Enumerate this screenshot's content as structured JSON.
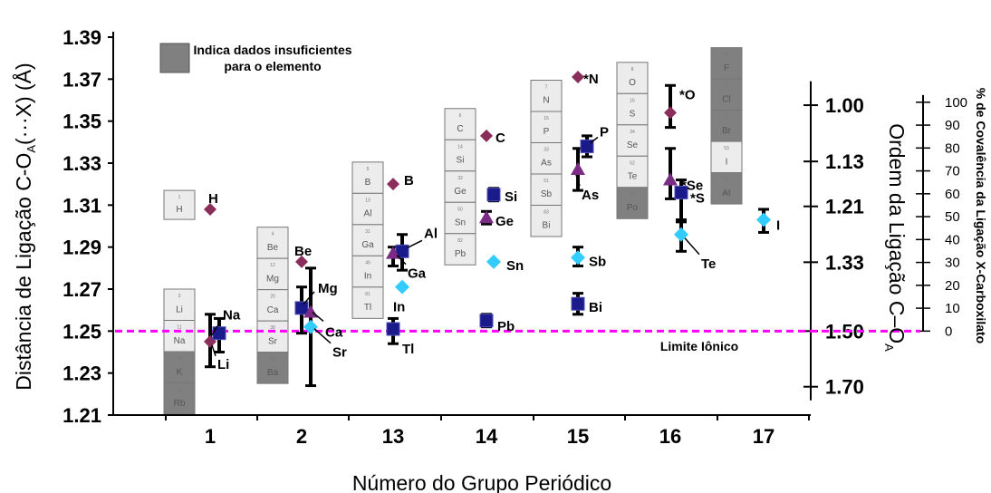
{
  "chart_data": {
    "type": "scatter",
    "xlabel": "Número do Grupo Periódico",
    "ylabel": "Distância de Ligação C-O",
    "ylabel_sub": "A",
    "ylabel_tail": "(···X) (Å)",
    "right_label": "Ordem da Ligação C–O",
    "right_label_sub": "A",
    "far_right_label": "% de Covalência da Ligação X-Carboxilato",
    "categories": [
      "1",
      "2",
      "13",
      "14",
      "15",
      "16",
      "17"
    ],
    "yticks": [
      "1.21",
      "1.23",
      "1.25",
      "1.27",
      "1.29",
      "1.31",
      "1.33",
      "1.35",
      "1.37",
      "1.39"
    ],
    "ylim": [
      1.21,
      1.39
    ],
    "bond_order_ticks": [
      {
        "label": "1.00",
        "y": 1.3576
      },
      {
        "label": "1.13",
        "y": 1.3308
      },
      {
        "label": "1.21",
        "y": 1.3094
      },
      {
        "label": "1.33",
        "y": 1.2828
      },
      {
        "label": "1.50",
        "y": 1.25
      },
      {
        "label": "1.70",
        "y": 1.2235
      }
    ],
    "covalence_ticks": [
      "0",
      "10",
      "20",
      "30",
      "40",
      "50",
      "60",
      "70",
      "80",
      "90",
      "100"
    ],
    "covalence_range": [
      1.25,
      1.359
    ],
    "ionic_limit": {
      "y": 1.25,
      "label": "Limite Iônico",
      "color": "#ff00ff"
    },
    "legend": {
      "text_line1": "Indica dados insuficientes",
      "text_line2": "para o elemento",
      "swatch_color": "#808080"
    },
    "colors": {
      "diamond": "#8b2d5b",
      "square": "#1a1a8a",
      "triangle": "#7b2b83",
      "cyan": "#33ccff",
      "insufficient": "#808080",
      "box": "#ececec"
    },
    "periodic_boxes": [
      {
        "group": 1,
        "elements": [
          {
            "s": "H",
            "n": "1",
            "dark": false
          }
        ],
        "top": 1.317
      },
      {
        "group": 1,
        "elements": [
          {
            "s": "Li",
            "n": "3",
            "dark": false
          },
          {
            "s": "Na",
            "n": "11",
            "dark": false
          },
          {
            "s": "K",
            "n": "19",
            "dark": true
          },
          {
            "s": "Rb",
            "n": "37",
            "dark": true
          }
        ],
        "top": 1.27
      },
      {
        "group": 2,
        "elements": [
          {
            "s": "Be",
            "n": "4",
            "dark": false
          },
          {
            "s": "Mg",
            "n": "12",
            "dark": false
          },
          {
            "s": "Ca",
            "n": "20",
            "dark": false
          },
          {
            "s": "Sr",
            "n": "38",
            "dark": false
          },
          {
            "s": "Ba",
            "n": "56",
            "dark": true
          }
        ],
        "top": 1.2995
      },
      {
        "group": 13,
        "elements": [
          {
            "s": "B",
            "n": "5",
            "dark": false
          },
          {
            "s": "Al",
            "n": "13",
            "dark": false
          },
          {
            "s": "Ga",
            "n": "31",
            "dark": false
          },
          {
            "s": "In",
            "n": "49",
            "dark": false
          },
          {
            "s": "Tl",
            "n": "81",
            "dark": false
          }
        ],
        "top": 1.3305
      },
      {
        "group": 14,
        "elements": [
          {
            "s": "C",
            "n": "6",
            "dark": false
          },
          {
            "s": "Si",
            "n": "14",
            "dark": false
          },
          {
            "s": "Ge",
            "n": "32",
            "dark": false
          },
          {
            "s": "Sn",
            "n": "50",
            "dark": false
          },
          {
            "s": "Pb",
            "n": "82",
            "dark": false
          }
        ],
        "top": 1.356
      },
      {
        "group": 15,
        "elements": [
          {
            "s": "N",
            "n": "7",
            "dark": false
          },
          {
            "s": "P",
            "n": "15",
            "dark": false
          },
          {
            "s": "As",
            "n": "33",
            "dark": false
          },
          {
            "s": "Sb",
            "n": "51",
            "dark": false
          },
          {
            "s": "Bi",
            "n": "83",
            "dark": false
          }
        ],
        "top": 1.3695
      },
      {
        "group": 16,
        "elements": [
          {
            "s": "O",
            "n": "8",
            "dark": false
          },
          {
            "s": "S",
            "n": "16",
            "dark": false
          },
          {
            "s": "Se",
            "n": "34",
            "dark": false
          },
          {
            "s": "Te",
            "n": "52",
            "dark": false
          },
          {
            "s": "Po",
            "n": "84",
            "dark": true
          }
        ],
        "top": 1.378
      },
      {
        "group": 17,
        "elements": [
          {
            "s": "F",
            "n": "9",
            "dark": true
          },
          {
            "s": "Cl",
            "n": "17",
            "dark": true
          },
          {
            "s": "Br",
            "n": "35",
            "dark": true
          },
          {
            "s": "I",
            "n": "53",
            "dark": false
          },
          {
            "s": "At",
            "n": "85",
            "dark": true
          }
        ],
        "top": 1.385
      }
    ],
    "points": [
      {
        "label": "H",
        "group": 1,
        "offset": 0.0,
        "y": 1.308,
        "marker": "diamond"
      },
      {
        "label": "Li",
        "group": 1,
        "offset": 0.0,
        "y": 1.245,
        "marker": "diamond",
        "err": [
          1.233,
          1.258
        ]
      },
      {
        "label": "Na",
        "group": 1,
        "offset": 0.1,
        "y": 1.249,
        "marker": "square",
        "err": [
          1.24,
          1.256
        ]
      },
      {
        "label": "Be",
        "group": 2,
        "offset": 0.0,
        "y": 1.283,
        "marker": "diamond"
      },
      {
        "label": "Mg",
        "group": 2,
        "offset": 0.0,
        "y": 1.261,
        "marker": "square",
        "err": [
          1.249,
          1.271
        ]
      },
      {
        "label": "Ca",
        "group": 2,
        "offset": 0.1,
        "y": 1.259,
        "marker": "triangle",
        "err": [
          1.224,
          1.28
        ]
      },
      {
        "label": "Sr",
        "group": 2,
        "offset": 0.1,
        "y": 1.252,
        "marker": "cyan"
      },
      {
        "label": "B",
        "group": 13,
        "offset": 0.0,
        "y": 1.32,
        "marker": "diamond"
      },
      {
        "label": "Al",
        "group": 13,
        "offset": 0.1,
        "y": 1.288,
        "marker": "square",
        "err": [
          1.279,
          1.296
        ]
      },
      {
        "label": "Ga",
        "group": 13,
        "offset": 0.0,
        "y": 1.287,
        "marker": "triangle",
        "err": [
          1.281,
          1.29
        ]
      },
      {
        "label": "In",
        "group": 13,
        "offset": 0.1,
        "y": 1.271,
        "marker": "cyan"
      },
      {
        "label": "Tl",
        "group": 13,
        "offset": 0.0,
        "y": 1.251,
        "marker": "square",
        "err": [
          1.244,
          1.256
        ]
      },
      {
        "label": "C",
        "group": 14,
        "offset": 0.0,
        "y": 1.343,
        "marker": "diamond"
      },
      {
        "label": "Si",
        "group": 14,
        "offset": 0.08,
        "y": 1.315,
        "marker": "square",
        "err": [
          1.312,
          1.318
        ]
      },
      {
        "label": "Ge",
        "group": 14,
        "offset": 0.0,
        "y": 1.304,
        "marker": "triangle",
        "err": [
          1.301,
          1.307
        ]
      },
      {
        "label": "Sn",
        "group": 14,
        "offset": 0.08,
        "y": 1.283,
        "marker": "cyan"
      },
      {
        "label": "Pb",
        "group": 14,
        "offset": 0.0,
        "y": 1.255,
        "marker": "square",
        "err": [
          1.252,
          1.258
        ]
      },
      {
        "label": "*N",
        "group": 15,
        "offset": 0.0,
        "y": 1.371,
        "marker": "diamond"
      },
      {
        "label": "P",
        "group": 15,
        "offset": 0.1,
        "y": 1.338,
        "marker": "square",
        "err": [
          1.333,
          1.343
        ]
      },
      {
        "label": "As",
        "group": 15,
        "offset": 0.0,
        "y": 1.327,
        "marker": "triangle",
        "err": [
          1.317,
          1.337
        ]
      },
      {
        "label": "Sb",
        "group": 15,
        "offset": 0.0,
        "y": 1.285,
        "marker": "cyan",
        "err": [
          1.281,
          1.29
        ]
      },
      {
        "label": "Bi",
        "group": 15,
        "offset": 0.0,
        "y": 1.263,
        "marker": "square",
        "err": [
          1.258,
          1.268
        ]
      },
      {
        "label": "*O",
        "group": 16,
        "offset": 0.0,
        "y": 1.354,
        "marker": "diamond",
        "err": [
          1.347,
          1.367
        ]
      },
      {
        "label": "*Se",
        "group": 16,
        "offset": 0.0,
        "y": 1.322,
        "marker": "triangle",
        "err": [
          1.313,
          1.337
        ]
      },
      {
        "label": "*S",
        "group": 16,
        "offset": 0.12,
        "y": 1.316,
        "marker": "square",
        "err": [
          1.303,
          1.322
        ]
      },
      {
        "label": "Te",
        "group": 16,
        "offset": 0.12,
        "y": 1.296,
        "marker": "cyan",
        "err": [
          1.288,
          1.302
        ]
      },
      {
        "label": "I",
        "group": 17,
        "offset": 0.0,
        "y": 1.303,
        "marker": "cyan",
        "err": [
          1.297,
          1.308
        ]
      }
    ]
  }
}
